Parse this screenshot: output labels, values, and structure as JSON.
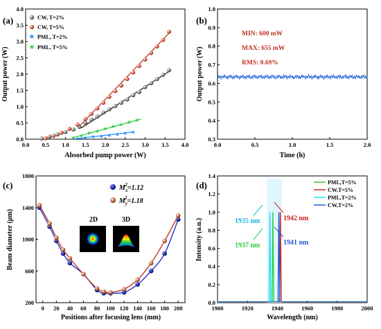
{
  "chart_data": [
    {
      "panel": "(a)",
      "type": "scatter",
      "xlabel": "Absorbed pump power (W)",
      "ylabel": "Output power (W)",
      "xlim": [
        0.0,
        4.0
      ],
      "ylim": [
        0.0,
        4.0
      ],
      "xticks": [
        "0.0",
        "0.5",
        "1.0",
        "1.5",
        "2.0",
        "2.5",
        "3.0",
        "3.5",
        "4.0"
      ],
      "yticks": [
        "0.0",
        "0.5",
        "1.0",
        "1.5",
        "2.0",
        "2.5",
        "3.0",
        "3.5",
        "4.0"
      ],
      "legend_position": "top-left",
      "series": [
        {
          "name": "CW, T=2%",
          "color": "#888888",
          "marker": "sphere",
          "x": [
            0.4,
            0.6,
            0.8,
            1.0,
            1.2,
            1.35,
            1.5,
            1.65,
            1.8,
            1.95,
            2.1,
            2.25,
            2.4,
            2.55,
            2.7,
            2.85,
            3.0,
            3.15,
            3.3,
            3.45,
            3.6
          ],
          "y": [
            0.02,
            0.08,
            0.15,
            0.22,
            0.3,
            0.38,
            0.5,
            0.6,
            0.7,
            0.82,
            0.92,
            1.02,
            1.12,
            1.22,
            1.35,
            1.45,
            1.6,
            1.72,
            1.85,
            1.98,
            2.12
          ],
          "fit": [
            [
              1.4,
              0.35
            ],
            [
              3.65,
              2.12
            ]
          ]
        },
        {
          "name": "CW, T=5%",
          "color": "#e8735a",
          "marker": "sphere",
          "x": [
            0.5,
            0.7,
            0.9,
            1.1,
            1.3,
            1.5,
            1.65,
            1.8,
            1.95,
            2.1,
            2.25,
            2.4,
            2.55,
            2.7,
            2.85,
            3.0,
            3.15,
            3.3,
            3.45,
            3.6
          ],
          "y": [
            0.03,
            0.1,
            0.2,
            0.32,
            0.45,
            0.62,
            0.78,
            0.95,
            1.12,
            1.3,
            1.48,
            1.65,
            1.85,
            2.05,
            2.25,
            2.45,
            2.65,
            2.85,
            3.05,
            3.3
          ],
          "fit": [
            [
              1.35,
              0.4
            ],
            [
              3.65,
              3.32
            ]
          ]
        },
        {
          "name": "PML, T=2%",
          "color": "#1e90ff",
          "marker": "star",
          "x": [
            1.3,
            1.5,
            1.7,
            1.9,
            2.1,
            2.3,
            2.5,
            2.7
          ],
          "y": [
            0.02,
            0.05,
            0.08,
            0.1,
            0.13,
            0.16,
            0.19,
            0.22
          ],
          "fit": [
            [
              1.3,
              0.02
            ],
            [
              2.7,
              0.22
            ]
          ]
        },
        {
          "name": "PML, T=5%",
          "color": "#2ecc40",
          "marker": "star",
          "x": [
            1.2,
            1.4,
            1.6,
            1.8,
            2.0,
            2.2,
            2.4,
            2.6,
            2.8
          ],
          "y": [
            0.05,
            0.12,
            0.2,
            0.26,
            0.33,
            0.4,
            0.46,
            0.53,
            0.6
          ],
          "fit": [
            [
              1.2,
              0.05
            ],
            [
              2.9,
              0.62
            ]
          ]
        }
      ]
    },
    {
      "panel": "(b)",
      "type": "line",
      "xlabel": "Time (h)",
      "ylabel": "Output power (W)",
      "xlim": [
        0.0,
        2.0
      ],
      "ylim": [
        0.3,
        1.0
      ],
      "xticks": [
        "0.0",
        "0.5",
        "1.0",
        "1.5",
        "2.0"
      ],
      "yticks": [
        "0.3",
        "0.4",
        "0.5",
        "0.6",
        "0.7",
        "0.8",
        "0.9",
        "1.0"
      ],
      "annotations": [
        "MIN:  600 mW",
        "MAX:  655 mW",
        "RMS:  0.69%"
      ],
      "series": [
        {
          "name": "",
          "color": "#1e5bd6",
          "mean": 0.635,
          "amplitude": 0.012
        }
      ]
    },
    {
      "panel": "(c)",
      "type": "scatter",
      "xlabel": "Positions after focusing lens (mm)",
      "ylabel": "Beam diameter (μm)",
      "xlim": [
        -10,
        210
      ],
      "ylim": [
        200,
        1800
      ],
      "xticks": [
        "0",
        "20",
        "40",
        "60",
        "80",
        "100",
        "120",
        "140",
        "160",
        "180",
        "200"
      ],
      "yticks": [
        "200",
        "600",
        "1000",
        "1400",
        "1800"
      ],
      "legend": [
        {
          "symbol": "M",
          "sub": "x",
          "sup": "2",
          "value": "=1.12"
        },
        {
          "symbol": "M",
          "sub": "y",
          "sup": "2",
          "value": "=1.18"
        }
      ],
      "inset_labels": [
        "2D",
        "3D"
      ],
      "series": [
        {
          "name": "",
          "color": "#2233cc",
          "marker": "sphere",
          "x": [
            -5,
            10,
            20,
            30,
            40,
            60,
            80,
            90,
            100,
            120,
            140,
            160,
            180,
            200
          ],
          "y": [
            1400,
            1160,
            980,
            820,
            700,
            560,
            360,
            320,
            320,
            330,
            430,
            600,
            820,
            1250
          ]
        },
        {
          "name": "",
          "color": "#d9805a",
          "marker": "sphere",
          "x": [
            -5,
            10,
            20,
            30,
            40,
            60,
            80,
            90,
            100,
            120,
            140,
            160,
            180,
            200
          ],
          "y": [
            1430,
            1200,
            1020,
            870,
            760,
            560,
            380,
            340,
            330,
            370,
            490,
            700,
            980,
            1300
          ]
        }
      ]
    },
    {
      "panel": "(d)",
      "type": "line",
      "xlabel": "Wavelength (nm)",
      "ylabel": "Intensity (a.u.)",
      "xlim": [
        1900,
        2000
      ],
      "ylim": [
        0.0,
        1.4
      ],
      "xticks": [
        "1900",
        "1920",
        "1940",
        "1960",
        "1980",
        "2000"
      ],
      "yticks": [
        "0.0",
        "0.2",
        "0.4",
        "0.6",
        "0.8",
        "1.0",
        "1.2",
        "1.4"
      ],
      "legend_position": "top-right",
      "annotations": [
        {
          "text": "1935 nm",
          "color": "#19b5e6"
        },
        {
          "text": "1937 nm",
          "color": "#2ecc40"
        },
        {
          "text": "1942 nm",
          "color": "#cc2222"
        },
        {
          "text": "1941 nm",
          "color": "#1e5bd6"
        }
      ],
      "series": [
        {
          "name": "PML,T=5%",
          "color": "#2ecc40",
          "peak": 1937
        },
        {
          "name": "CW,T=5%",
          "color": "#cc2222",
          "peak": 1942
        },
        {
          "name": "PML,T=2%",
          "color": "#19e0ff",
          "peak": 1935
        },
        {
          "name": "CW,T=2%",
          "color": "#1e5bd6",
          "peak": 1941
        }
      ]
    }
  ]
}
